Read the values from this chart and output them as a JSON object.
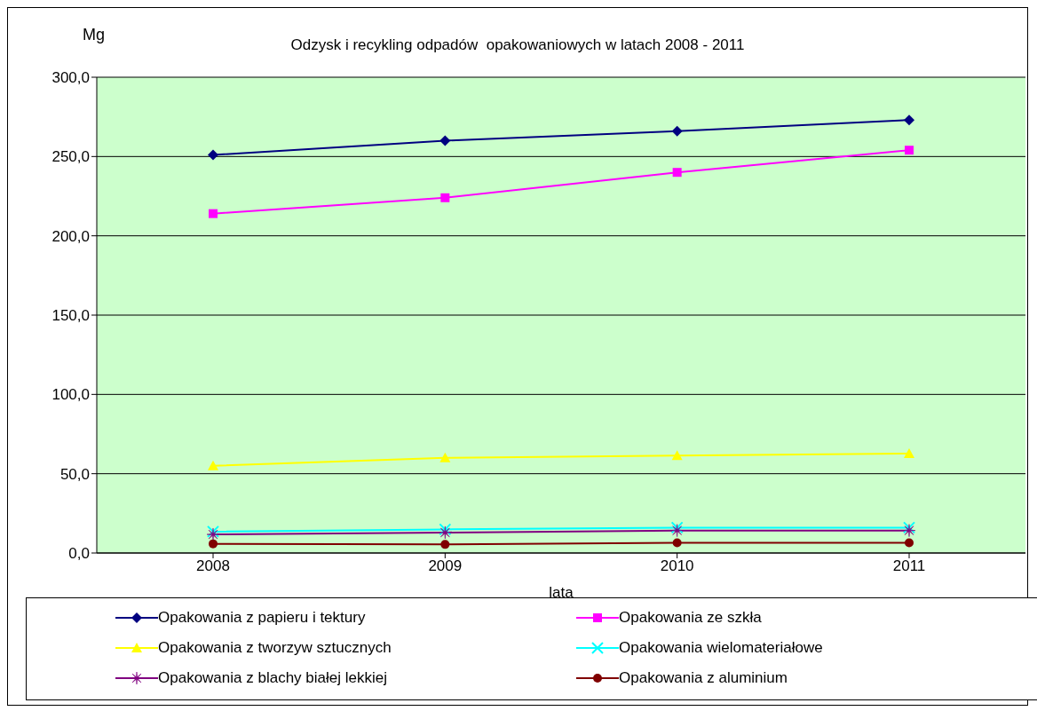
{
  "chart_data": {
    "type": "line",
    "title": "Odzysk i recykling odpadów  opakowaniowych w latach 2008 - 2011",
    "ylabel": "Mg",
    "xlabel": "lata",
    "categories": [
      "2008",
      "2009",
      "2010",
      "2011"
    ],
    "ylim": [
      0,
      300
    ],
    "yticks": [
      {
        "value": 0,
        "label": "0,0"
      },
      {
        "value": 50,
        "label": "50,0"
      },
      {
        "value": 100,
        "label": "100,0"
      },
      {
        "value": 150,
        "label": "150,0"
      },
      {
        "value": 200,
        "label": "200,0"
      },
      {
        "value": 250,
        "label": "250,0"
      },
      {
        "value": 300,
        "label": "300,0"
      }
    ],
    "grid": "y",
    "legend": "bottom",
    "series": [
      {
        "name": "Opakowania z papieru i tektury",
        "color": "#000080",
        "marker": "diamond",
        "values": [
          251,
          260,
          266,
          273
        ]
      },
      {
        "name": "Opakowania ze szkła",
        "color": "#ff00ff",
        "marker": "square",
        "values": [
          214,
          224,
          240,
          254
        ]
      },
      {
        "name": "Opakowania z tworzyw sztucznych",
        "color": "#ffff00",
        "marker": "triangle",
        "values": [
          55,
          60,
          61.4,
          62.7
        ]
      },
      {
        "name": "Opakowania wielomateriałowe",
        "color": "#00ffff",
        "marker": "cross",
        "values": [
          13.5,
          14.9,
          16,
          16
        ]
      },
      {
        "name": "Opakowania z blachy białej lekkiej",
        "color": "#800080",
        "marker": "star",
        "values": [
          11.7,
          12.9,
          14.2,
          14.2
        ]
      },
      {
        "name": "Opakowania z aluminium",
        "color": "#800000",
        "marker": "circle",
        "values": [
          5.8,
          5.4,
          6.4,
          6.4
        ]
      }
    ]
  }
}
